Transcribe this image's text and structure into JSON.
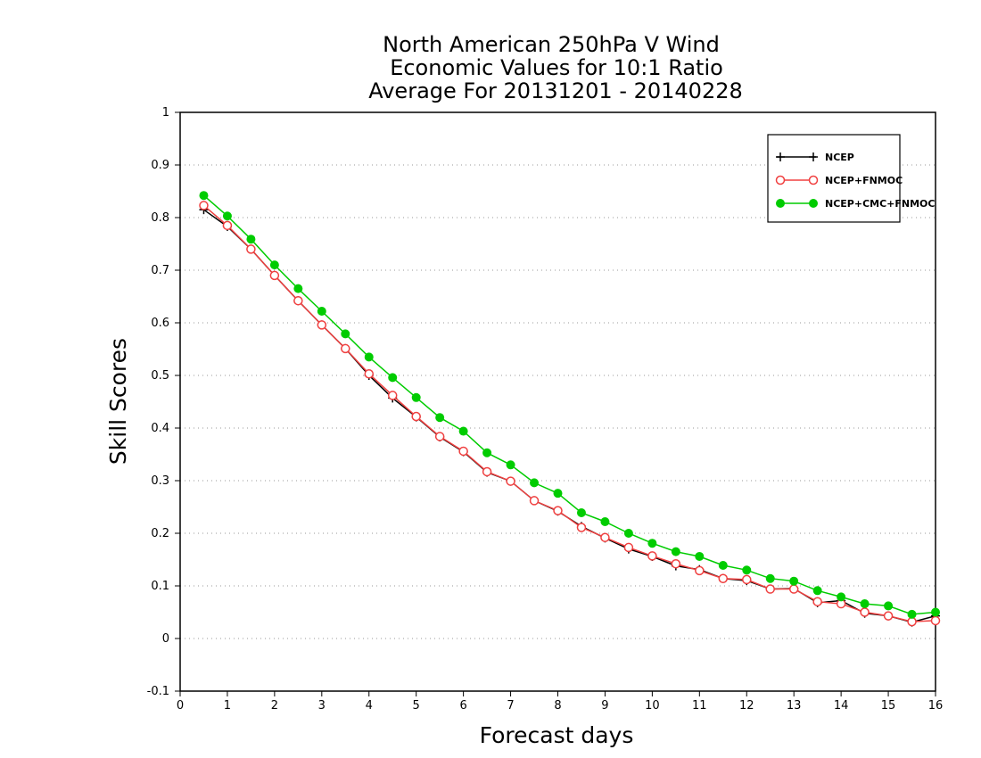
{
  "chart_data": {
    "type": "line",
    "title": [
      "North American 250hPa V Wind",
      "Economic Values for 10:1 Ratio",
      "Average For 20131201 - 20140228"
    ],
    "xlabel": "Forecast days",
    "ylabel": "Skill Scores",
    "xlim": [
      0,
      16
    ],
    "ylim": [
      -0.1,
      1
    ],
    "xticks": [
      "0",
      "1",
      "2",
      "3",
      "4",
      "5",
      "6",
      "7",
      "8",
      "9",
      "10",
      "11",
      "12",
      "13",
      "14",
      "15",
      "16"
    ],
    "yticks": [
      "-0.1",
      "0",
      "0.1",
      "0.2",
      "0.3",
      "0.4",
      "0.5",
      "0.6",
      "0.7",
      "0.8",
      "0.9",
      "1"
    ],
    "grid": "horizontal dotted",
    "legend_position": "top-right",
    "x": [
      0.5,
      1,
      1.5,
      2,
      2.5,
      3,
      3.5,
      4,
      4.5,
      5,
      5.5,
      6,
      6.5,
      7,
      7.5,
      8,
      8.5,
      9,
      9.5,
      10,
      10.5,
      11,
      11.5,
      12,
      12.5,
      13,
      13.5,
      14,
      14.5,
      15,
      15.5,
      16
    ],
    "series": [
      {
        "name": "NCEP",
        "color": "#000000",
        "marker": "plus",
        "values": [
          0.815,
          0.783,
          0.74,
          0.69,
          0.642,
          0.596,
          0.551,
          0.5,
          0.457,
          0.421,
          0.383,
          0.355,
          0.316,
          0.299,
          0.262,
          0.242,
          0.213,
          0.191,
          0.17,
          0.156,
          0.138,
          0.131,
          0.114,
          0.11,
          0.094,
          0.095,
          0.068,
          0.072,
          0.048,
          0.043,
          0.031,
          0.043
        ]
      },
      {
        "name": "NCEP+FNMOC",
        "color": "#f04040",
        "marker": "open-circle",
        "values": [
          0.823,
          0.785,
          0.74,
          0.69,
          0.642,
          0.596,
          0.551,
          0.503,
          0.462,
          0.422,
          0.384,
          0.356,
          0.317,
          0.299,
          0.262,
          0.243,
          0.211,
          0.192,
          0.173,
          0.157,
          0.142,
          0.129,
          0.114,
          0.112,
          0.094,
          0.094,
          0.07,
          0.066,
          0.05,
          0.043,
          0.032,
          0.034
        ]
      },
      {
        "name": "NCEP+CMC+FNMOC",
        "color": "#00cc00",
        "marker": "filled-circle",
        "values": [
          0.842,
          0.803,
          0.759,
          0.71,
          0.665,
          0.622,
          0.579,
          0.535,
          0.496,
          0.458,
          0.42,
          0.394,
          0.353,
          0.33,
          0.296,
          0.276,
          0.239,
          0.222,
          0.2,
          0.181,
          0.165,
          0.156,
          0.139,
          0.13,
          0.114,
          0.109,
          0.091,
          0.079,
          0.066,
          0.062,
          0.046,
          0.05
        ]
      }
    ]
  }
}
